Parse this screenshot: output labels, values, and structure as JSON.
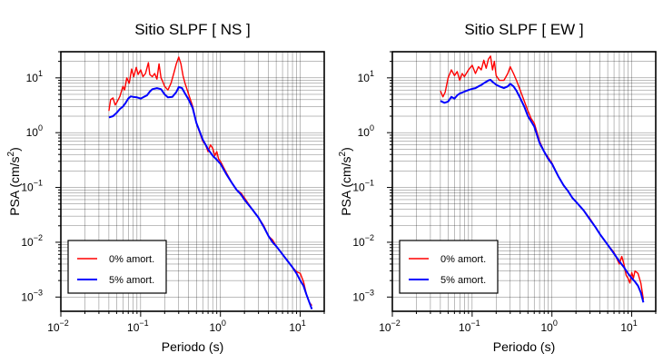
{
  "colors": {
    "zero_damping": "#ff0000",
    "five_damping": "#0000ff"
  },
  "chart_data": [
    {
      "type": "line",
      "title": "Sitio SLPF [ NS ]",
      "xlabel": "Periodo (s)",
      "ylabel_base": "PSA (cm/s",
      "ylabel_sup": "2",
      "ylabel_end": ")",
      "xscale": "log",
      "yscale": "log",
      "xlim": [
        0.01,
        20
      ],
      "ylim": [
        0.00055,
        30
      ],
      "grid": true,
      "legend_placement": "bottom-left",
      "xticks": [
        {
          "value": 0.01,
          "base": "10",
          "exp": "−2"
        },
        {
          "value": 0.1,
          "base": "10",
          "exp": "−1"
        },
        {
          "value": 1,
          "base": "10",
          "exp": "0"
        },
        {
          "value": 10,
          "base": "10",
          "exp": "1"
        }
      ],
      "yticks": [
        {
          "value": 0.001,
          "base": "10",
          "exp": "−3"
        },
        {
          "value": 0.01,
          "base": "10",
          "exp": "−2"
        },
        {
          "value": 0.1,
          "base": "10",
          "exp": "−1"
        },
        {
          "value": 1,
          "base": "10",
          "exp": "0"
        },
        {
          "value": 10,
          "base": "10",
          "exp": "1"
        }
      ],
      "series": [
        {
          "name": "0% amort.",
          "color": "#ff0000",
          "points": [
            [
              0.04,
              2.5
            ],
            [
              0.042,
              4.0
            ],
            [
              0.045,
              4.3
            ],
            [
              0.048,
              3.2
            ],
            [
              0.05,
              3.5
            ],
            [
              0.055,
              4.6
            ],
            [
              0.06,
              7.0
            ],
            [
              0.063,
              6.0
            ],
            [
              0.067,
              10.0
            ],
            [
              0.072,
              8.0
            ],
            [
              0.077,
              14.5
            ],
            [
              0.082,
              10.5
            ],
            [
              0.088,
              15.5
            ],
            [
              0.093,
              11.5
            ],
            [
              0.1,
              14.0
            ],
            [
              0.107,
              10.5
            ],
            [
              0.115,
              12.0
            ],
            [
              0.125,
              19.0
            ],
            [
              0.13,
              11.5
            ],
            [
              0.14,
              10.5
            ],
            [
              0.15,
              12.0
            ],
            [
              0.16,
              9.5
            ],
            [
              0.17,
              18.0
            ],
            [
              0.18,
              10.0
            ],
            [
              0.19,
              8.5
            ],
            [
              0.2,
              7.0
            ],
            [
              0.22,
              6.0
            ],
            [
              0.24,
              8.0
            ],
            [
              0.26,
              12.0
            ],
            [
              0.28,
              18.0
            ],
            [
              0.3,
              24.0
            ],
            [
              0.32,
              18.0
            ],
            [
              0.34,
              11.0
            ],
            [
              0.36,
              8.0
            ],
            [
              0.4,
              5.0
            ],
            [
              0.45,
              3.0
            ],
            [
              0.5,
              1.5
            ],
            [
              0.55,
              1.0
            ],
            [
              0.6,
              0.7
            ],
            [
              0.65,
              0.6
            ],
            [
              0.7,
              0.45
            ],
            [
              0.75,
              0.6
            ],
            [
              0.8,
              0.52
            ],
            [
              0.85,
              0.38
            ],
            [
              0.9,
              0.45
            ],
            [
              0.95,
              0.33
            ],
            [
              1.0,
              0.3
            ],
            [
              1.2,
              0.18
            ],
            [
              1.4,
              0.12
            ],
            [
              1.6,
              0.09
            ],
            [
              1.8,
              0.08
            ],
            [
              2.0,
              0.065
            ],
            [
              2.5,
              0.04
            ],
            [
              3.0,
              0.028
            ],
            [
              3.5,
              0.02
            ],
            [
              4.0,
              0.013
            ],
            [
              4.5,
              0.011
            ],
            [
              5.0,
              0.0085
            ],
            [
              6.0,
              0.006
            ],
            [
              7.0,
              0.0045
            ],
            [
              8.0,
              0.0035
            ],
            [
              9.0,
              0.0029
            ],
            [
              10.0,
              0.0027
            ],
            [
              11.0,
              0.0019
            ],
            [
              12.0,
              0.0011
            ],
            [
              13.0,
              0.0008
            ],
            [
              14.0,
              0.0007
            ]
          ]
        },
        {
          "name": "5% amort.",
          "color": "#0000ff",
          "points": [
            [
              0.04,
              1.9
            ],
            [
              0.045,
              2.0
            ],
            [
              0.05,
              2.3
            ],
            [
              0.055,
              2.7
            ],
            [
              0.06,
              3.0
            ],
            [
              0.065,
              3.5
            ],
            [
              0.07,
              4.2
            ],
            [
              0.075,
              4.6
            ],
            [
              0.08,
              4.5
            ],
            [
              0.09,
              4.4
            ],
            [
              0.1,
              4.2
            ],
            [
              0.11,
              4.5
            ],
            [
              0.12,
              4.8
            ],
            [
              0.13,
              5.6
            ],
            [
              0.14,
              6.2
            ],
            [
              0.16,
              6.5
            ],
            [
              0.18,
              6.2
            ],
            [
              0.2,
              5.0
            ],
            [
              0.22,
              4.4
            ],
            [
              0.25,
              4.5
            ],
            [
              0.28,
              5.5
            ],
            [
              0.3,
              6.8
            ],
            [
              0.33,
              6.5
            ],
            [
              0.36,
              5.2
            ],
            [
              0.4,
              4.0
            ],
            [
              0.45,
              2.8
            ],
            [
              0.5,
              1.5
            ],
            [
              0.6,
              0.75
            ],
            [
              0.7,
              0.5
            ],
            [
              0.8,
              0.38
            ],
            [
              0.9,
              0.32
            ],
            [
              1.0,
              0.27
            ],
            [
              1.2,
              0.17
            ],
            [
              1.4,
              0.12
            ],
            [
              1.6,
              0.09
            ],
            [
              1.8,
              0.075
            ],
            [
              2.0,
              0.06
            ],
            [
              2.5,
              0.04
            ],
            [
              3.0,
              0.028
            ],
            [
              3.5,
              0.019
            ],
            [
              4.0,
              0.013
            ],
            [
              4.5,
              0.01
            ],
            [
              5.0,
              0.0085
            ],
            [
              6.0,
              0.006
            ],
            [
              7.0,
              0.0045
            ],
            [
              8.0,
              0.0035
            ],
            [
              9.0,
              0.0027
            ],
            [
              10.0,
              0.002
            ],
            [
              11.0,
              0.0016
            ],
            [
              12.0,
              0.0011
            ],
            [
              13.0,
              0.0008
            ],
            [
              14.0,
              0.0006
            ]
          ]
        }
      ]
    },
    {
      "type": "line",
      "title": "Sitio SLPF [ EW ]",
      "xlabel": "Periodo (s)",
      "ylabel_base": "PSA (cm/s",
      "ylabel_sup": "2",
      "ylabel_end": ")",
      "xscale": "log",
      "yscale": "log",
      "xlim": [
        0.01,
        20
      ],
      "ylim": [
        0.00055,
        30
      ],
      "grid": true,
      "legend_placement": "bottom-left",
      "xticks": [
        {
          "value": 0.01,
          "base": "10",
          "exp": "−2"
        },
        {
          "value": 0.1,
          "base": "10",
          "exp": "−1"
        },
        {
          "value": 1,
          "base": "10",
          "exp": "0"
        },
        {
          "value": 10,
          "base": "10",
          "exp": "1"
        }
      ],
      "yticks": [
        {
          "value": 0.001,
          "base": "10",
          "exp": "−3"
        },
        {
          "value": 0.01,
          "base": "10",
          "exp": "−2"
        },
        {
          "value": 0.1,
          "base": "10",
          "exp": "−1"
        },
        {
          "value": 1,
          "base": "10",
          "exp": "0"
        },
        {
          "value": 10,
          "base": "10",
          "exp": "1"
        }
      ],
      "series": [
        {
          "name": "0% amort.",
          "color": "#ff0000",
          "points": [
            [
              0.04,
              5.8
            ],
            [
              0.043,
              4.5
            ],
            [
              0.046,
              5.5
            ],
            [
              0.05,
              10.0
            ],
            [
              0.055,
              14.0
            ],
            [
              0.06,
              11.0
            ],
            [
              0.065,
              13.0
            ],
            [
              0.07,
              9.0
            ],
            [
              0.075,
              12.0
            ],
            [
              0.08,
              10.5
            ],
            [
              0.09,
              14.0
            ],
            [
              0.1,
              17.0
            ],
            [
              0.11,
              12.0
            ],
            [
              0.12,
              16.0
            ],
            [
              0.13,
              14.0
            ],
            [
              0.14,
              21.0
            ],
            [
              0.15,
              15.0
            ],
            [
              0.16,
              22.0
            ],
            [
              0.17,
              25.0
            ],
            [
              0.18,
              14.0
            ],
            [
              0.19,
              20.0
            ],
            [
              0.2,
              11.0
            ],
            [
              0.22,
              9.0
            ],
            [
              0.25,
              9.0
            ],
            [
              0.28,
              12.0
            ],
            [
              0.3,
              16.0
            ],
            [
              0.33,
              12.0
            ],
            [
              0.36,
              9.0
            ],
            [
              0.4,
              6.0
            ],
            [
              0.45,
              3.8
            ],
            [
              0.5,
              2.5
            ],
            [
              0.55,
              1.8
            ],
            [
              0.6,
              1.5
            ],
            [
              0.7,
              0.7
            ],
            [
              0.8,
              0.45
            ],
            [
              0.9,
              0.35
            ],
            [
              1.0,
              0.28
            ],
            [
              1.2,
              0.16
            ],
            [
              1.4,
              0.11
            ],
            [
              1.6,
              0.085
            ],
            [
              1.8,
              0.065
            ],
            [
              2.0,
              0.055
            ],
            [
              2.5,
              0.038
            ],
            [
              3.0,
              0.027
            ],
            [
              3.5,
              0.019
            ],
            [
              4.0,
              0.014
            ],
            [
              5.0,
              0.009
            ],
            [
              6.0,
              0.0065
            ],
            [
              7.0,
              0.004
            ],
            [
              7.5,
              0.0055
            ],
            [
              8.0,
              0.004
            ],
            [
              8.5,
              0.0025
            ],
            [
              9.0,
              0.0022
            ],
            [
              9.5,
              0.0018
            ],
            [
              10.0,
              0.0028
            ],
            [
              10.5,
              0.0022
            ],
            [
              11.0,
              0.003
            ],
            [
              12.0,
              0.0027
            ],
            [
              13.0,
              0.0018
            ],
            [
              14.0,
              0.0009
            ]
          ]
        },
        {
          "name": "5% amort.",
          "color": "#0000ff",
          "points": [
            [
              0.04,
              3.8
            ],
            [
              0.045,
              3.5
            ],
            [
              0.05,
              3.7
            ],
            [
              0.055,
              4.5
            ],
            [
              0.06,
              4.2
            ],
            [
              0.065,
              4.8
            ],
            [
              0.07,
              5.2
            ],
            [
              0.08,
              5.6
            ],
            [
              0.09,
              6.0
            ],
            [
              0.1,
              6.3
            ],
            [
              0.11,
              6.5
            ],
            [
              0.12,
              7.0
            ],
            [
              0.13,
              7.4
            ],
            [
              0.14,
              8.0
            ],
            [
              0.15,
              8.5
            ],
            [
              0.16,
              9.0
            ],
            [
              0.17,
              9.2
            ],
            [
              0.18,
              8.5
            ],
            [
              0.2,
              7.5
            ],
            [
              0.22,
              7.0
            ],
            [
              0.25,
              6.5
            ],
            [
              0.28,
              7.0
            ],
            [
              0.3,
              7.8
            ],
            [
              0.33,
              7.0
            ],
            [
              0.36,
              5.8
            ],
            [
              0.4,
              4.3
            ],
            [
              0.45,
              3.0
            ],
            [
              0.5,
              2.0
            ],
            [
              0.55,
              1.6
            ],
            [
              0.6,
              1.3
            ],
            [
              0.7,
              0.65
            ],
            [
              0.8,
              0.45
            ],
            [
              0.9,
              0.33
            ],
            [
              1.0,
              0.27
            ],
            [
              1.2,
              0.16
            ],
            [
              1.4,
              0.11
            ],
            [
              1.6,
              0.085
            ],
            [
              1.8,
              0.065
            ],
            [
              2.0,
              0.055
            ],
            [
              2.5,
              0.038
            ],
            [
              3.0,
              0.026
            ],
            [
              3.5,
              0.019
            ],
            [
              4.0,
              0.014
            ],
            [
              5.0,
              0.009
            ],
            [
              6.0,
              0.0062
            ],
            [
              7.0,
              0.0045
            ],
            [
              8.0,
              0.0035
            ],
            [
              9.0,
              0.0027
            ],
            [
              10.0,
              0.0022
            ],
            [
              11.0,
              0.0019
            ],
            [
              12.0,
              0.0016
            ],
            [
              13.0,
              0.0012
            ],
            [
              14.0,
              0.0008
            ]
          ]
        }
      ]
    }
  ]
}
